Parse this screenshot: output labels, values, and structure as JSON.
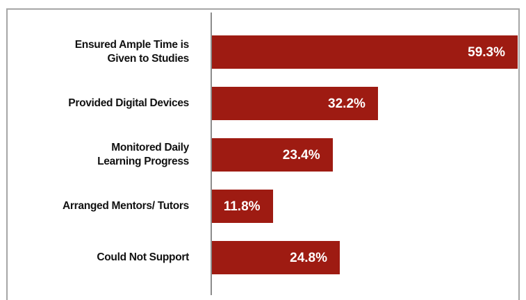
{
  "chart_data": {
    "type": "bar",
    "orientation": "horizontal",
    "categories": [
      "Ensured Ample Time is\nGiven to Studies",
      "Provided Digital Devices",
      "Monitored Daily\nLearning Progress",
      "Arranged Mentors/ Tutors",
      "Could Not Support"
    ],
    "values": [
      59.3,
      32.2,
      23.4,
      11.8,
      24.8
    ],
    "value_labels": [
      "59.3%",
      "32.2%",
      "23.4%",
      "11.8%",
      "24.8%"
    ],
    "color": "#9e1b12"
  }
}
